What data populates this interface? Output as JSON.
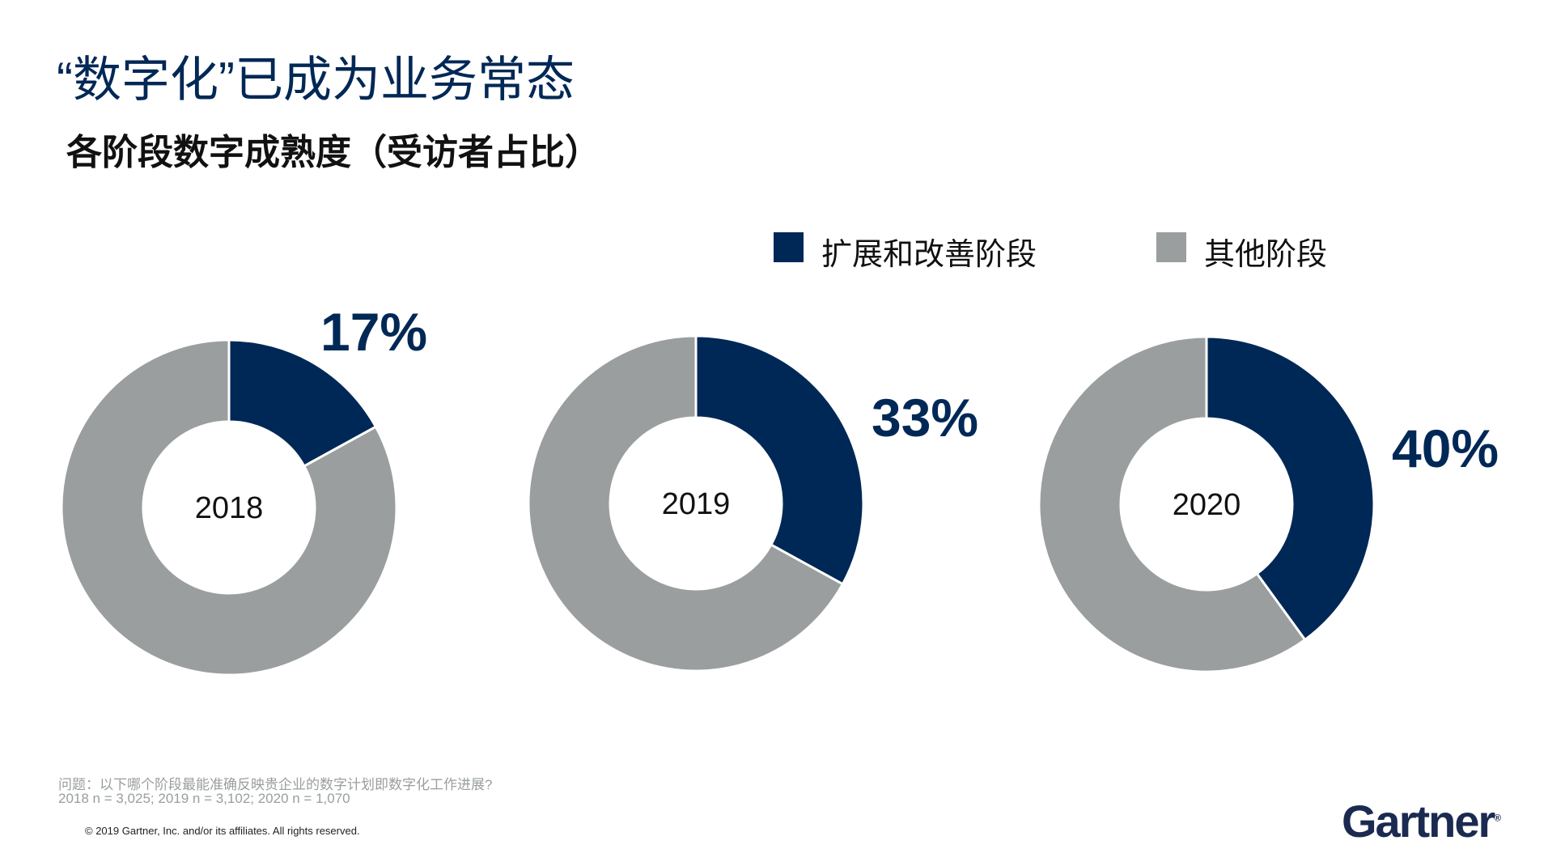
{
  "title": "“数字化”已成为业务常态",
  "subtitle": "各阶段数字成熟度（受访者占比）",
  "chart_data": {
    "type": "pie",
    "variant": "donut",
    "legend_placement": "top-right",
    "legend": [
      {
        "name": "扩展和改善阶段",
        "color": "#002856"
      },
      {
        "name": "其他阶段",
        "color": "#9a9e9e"
      }
    ],
    "charts": [
      {
        "center_label": "2018",
        "values": [
          17,
          83
        ],
        "label": "17%"
      },
      {
        "center_label": "2019",
        "values": [
          33,
          67
        ],
        "label": "33%"
      },
      {
        "center_label": "2020",
        "values": [
          40,
          60
        ],
        "label": "40%"
      }
    ]
  },
  "footnote": {
    "question": "问题：以下哪个阶段最能准确反映贵企业的数字计划即数字化工作进展?",
    "sample": "2018 n = 3,025; 2019 n = 3,102; 2020 n = 1,070"
  },
  "copyright": "© 2019 Gartner, Inc. and/or its affiliates. All rights reserved.",
  "logo": "Gartner"
}
